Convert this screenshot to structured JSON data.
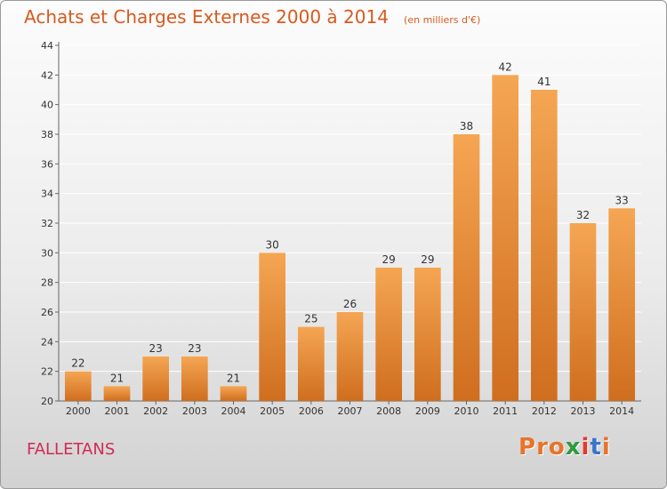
{
  "header": {
    "title": "Achats et Charges Externes 2000 à 2014",
    "subtitle": "(en milliers d'€)"
  },
  "footer": {
    "commune": "FALLETANS",
    "logo_text": "Proxiti",
    "logo_colors": [
      "#e8732a",
      "#e8732a",
      "#e8732a",
      "#2f9a3c",
      "#e23b2e",
      "#3a76c9",
      "#e8732a"
    ]
  },
  "colors": {
    "bar_light": "#f5a653",
    "bar_dark": "#cf6e1e",
    "title": "#d75a1e",
    "commune": "#d22a5a"
  },
  "chart_data": {
    "type": "bar",
    "categories": [
      "2000",
      "2001",
      "2002",
      "2003",
      "2004",
      "2005",
      "2006",
      "2007",
      "2008",
      "2009",
      "2010",
      "2011",
      "2012",
      "2013",
      "2014"
    ],
    "values": [
      22,
      21,
      23,
      23,
      21,
      30,
      25,
      26,
      29,
      29,
      38,
      42,
      41,
      32,
      33
    ],
    "ylim": [
      20,
      44
    ],
    "yticks": [
      20,
      22,
      24,
      26,
      28,
      30,
      32,
      34,
      36,
      38,
      40,
      42,
      44
    ],
    "grid": true
  }
}
